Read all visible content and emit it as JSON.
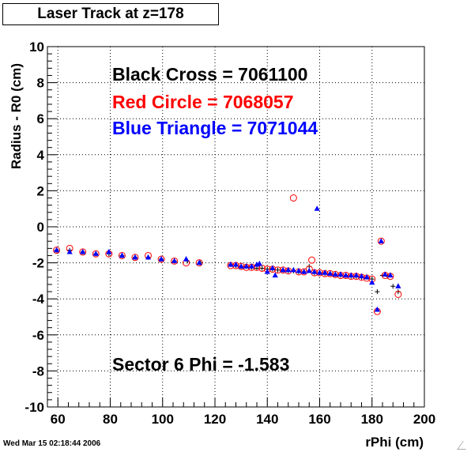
{
  "title": "Laser Track at z=178",
  "timestamp": "Wed Mar 15 02:18:44 2006",
  "chart_data": {
    "type": "scatter",
    "title": "Laser Track at z=178",
    "xlabel": "rPhi (cm)",
    "ylabel": "Radius - R0 (cm)",
    "xlim": [
      56,
      200
    ],
    "ylim": [
      -10,
      10
    ],
    "xticks": [
      60,
      80,
      100,
      120,
      140,
      160,
      180,
      200
    ],
    "yticks": [
      -10,
      -8,
      -6,
      -4,
      -2,
      0,
      2,
      4,
      6,
      8,
      10
    ],
    "grid": true,
    "annotations": [
      {
        "text": "Black Cross  = 7061100",
        "color": "#000000"
      },
      {
        "text": "Red Circle = 7068057",
        "color": "#ff0000"
      },
      {
        "text": "Blue Triangle = 7071044",
        "color": "#0000ff"
      },
      {
        "text": "Sector 6 Phi = -1.583",
        "color": "#000000"
      }
    ],
    "series": [
      {
        "marker": "cross",
        "color": "#000000",
        "x": [
          59.5,
          64.5,
          69.5,
          74.5,
          79.5,
          84.5,
          89.5,
          94.5,
          99.5,
          104.5,
          109.5,
          114.5,
          126,
          128,
          130,
          132,
          134,
          136,
          138,
          140,
          142,
          144,
          146,
          148,
          150,
          152,
          154,
          156,
          158,
          160,
          162,
          164,
          166,
          168,
          170,
          172,
          174,
          176,
          178,
          180,
          182,
          184,
          186,
          188,
          190
        ],
        "y": [
          -1.3,
          -1.3,
          -1.4,
          -1.5,
          -1.5,
          -1.6,
          -1.7,
          -1.7,
          -1.8,
          -1.9,
          -1.9,
          -2.0,
          -2.1,
          -2.15,
          -2.2,
          -2.2,
          -2.25,
          -2.3,
          -2.3,
          -2.35,
          -2.35,
          -2.4,
          -2.4,
          -2.45,
          -2.45,
          -2.5,
          -2.5,
          -2.2,
          -2.55,
          -2.55,
          -2.6,
          -2.6,
          -2.65,
          -2.7,
          -2.7,
          -2.75,
          -2.75,
          -2.8,
          -2.8,
          -2.9,
          -3.6,
          -2.7,
          -2.75,
          -3.3,
          -3.6
        ]
      },
      {
        "marker": "circle",
        "color": "#ff0000",
        "x": [
          59.5,
          64.5,
          69.5,
          74.5,
          79.5,
          84.5,
          89.5,
          94.5,
          99.5,
          104.5,
          109,
          114,
          126,
          128,
          130,
          132,
          134,
          136,
          138,
          140,
          142,
          144,
          146,
          148,
          150,
          152,
          154,
          156,
          157,
          158,
          160,
          162,
          164,
          166,
          168,
          170,
          172,
          174,
          176,
          178,
          180,
          182,
          183.5,
          185,
          187,
          190
        ],
        "y": [
          -1.3,
          -1.2,
          -1.4,
          -1.5,
          -1.5,
          -1.6,
          -1.7,
          -1.6,
          -1.8,
          -1.9,
          -2.0,
          -2.0,
          -2.15,
          -2.15,
          -2.2,
          -2.25,
          -2.25,
          -2.25,
          -2.3,
          -2.35,
          -2.35,
          -2.4,
          -2.4,
          -2.45,
          1.6,
          -2.5,
          -2.5,
          -2.35,
          -1.85,
          -2.55,
          -2.55,
          -2.6,
          -2.6,
          -2.65,
          -2.7,
          -2.7,
          -2.75,
          -2.75,
          -2.8,
          -2.85,
          -2.9,
          -4.7,
          -0.8,
          -2.7,
          -2.75,
          -3.75
        ]
      },
      {
        "marker": "triangle",
        "color": "#0000ff",
        "x": [
          59.5,
          64.5,
          69.5,
          74.5,
          79.5,
          84.5,
          89.5,
          94.5,
          99.5,
          104.5,
          109,
          114,
          126,
          128,
          130,
          132,
          134,
          136,
          137,
          140,
          142,
          143,
          146,
          148,
          150,
          152,
          154,
          156,
          158,
          159,
          160,
          162,
          164,
          166,
          168,
          170,
          172,
          174,
          176,
          178,
          180,
          182,
          183.5,
          185,
          187,
          190
        ],
        "y": [
          -1.3,
          -1.4,
          -1.4,
          -1.5,
          -1.4,
          -1.6,
          -1.7,
          -1.7,
          -1.8,
          -1.9,
          -1.8,
          -2.0,
          -2.1,
          -2.1,
          -2.2,
          -2.2,
          -2.2,
          -2.1,
          -2.05,
          -2.5,
          -2.3,
          -2.7,
          -2.4,
          -2.4,
          -2.4,
          -2.45,
          -2.5,
          -2.45,
          -2.5,
          1.0,
          -2.55,
          -2.55,
          -2.6,
          -2.65,
          -2.65,
          -2.7,
          -2.7,
          -2.7,
          -2.75,
          -2.8,
          -3.1,
          -4.6,
          -0.8,
          -2.65,
          -2.7,
          -3.3
        ]
      }
    ]
  }
}
